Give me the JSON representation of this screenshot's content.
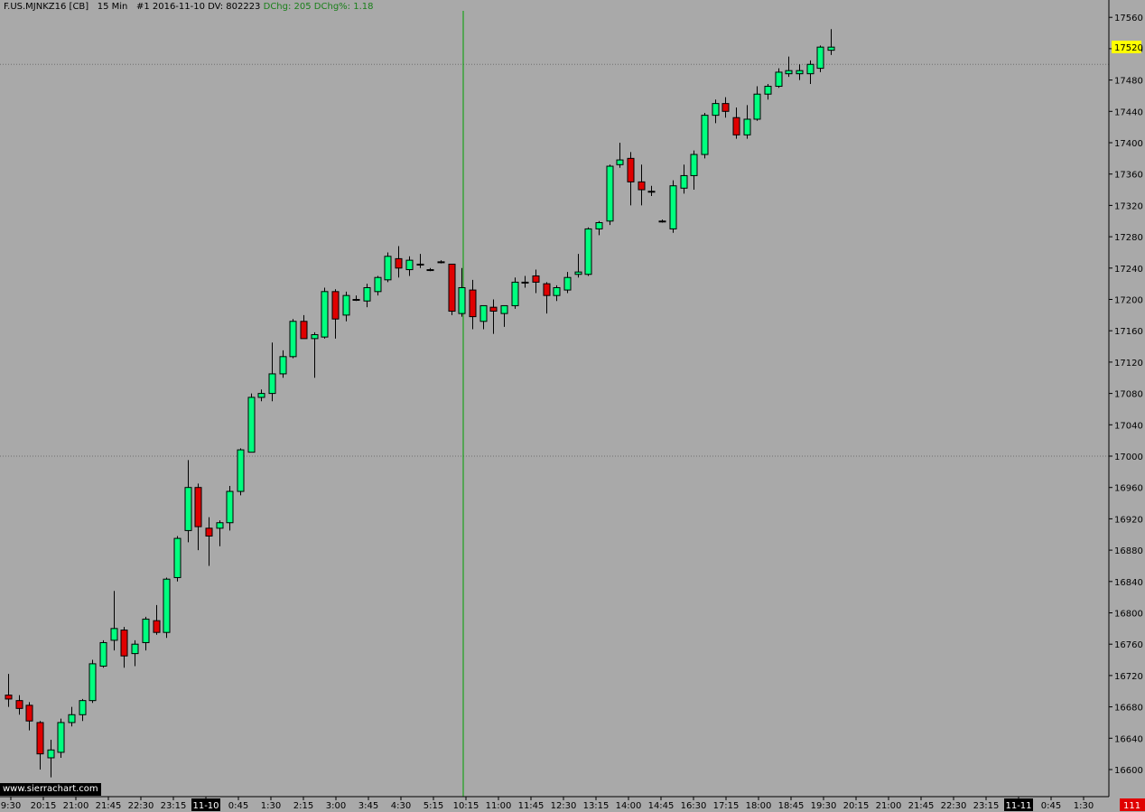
{
  "header": {
    "symbol": "F.US.MJNKZ16 [CB]",
    "timeframe": "15 Min",
    "info": "#1 2016-11-10 DV: 802223",
    "dchg": "DChg: 205 DChg%: 1.18"
  },
  "brand": "www.sierrachart.com",
  "price_marker": "17520",
  "corner_badge": "111",
  "colors": {
    "background": "#a9a9a9",
    "up": "#00ff7f",
    "down": "#e00000",
    "session_line": "#00a000",
    "marker_bg": "#ffff00"
  },
  "chart_data": {
    "type": "candlestick",
    "y_axis_ticks": [
      16600,
      16640,
      16680,
      16720,
      16760,
      16800,
      16840,
      16880,
      16920,
      16960,
      17000,
      17040,
      17080,
      17120,
      17160,
      17200,
      17240,
      17280,
      17320,
      17360,
      17400,
      17440,
      17480,
      17520,
      17560
    ],
    "x_axis_labels": [
      "9:30",
      "20:15",
      "21:00",
      "21:45",
      "22:30",
      "23:15",
      "11-10",
      "0:45",
      "1:30",
      "2:15",
      "3:00",
      "3:45",
      "4:30",
      "5:15",
      "10:15",
      "11:00",
      "11:45",
      "12:30",
      "13:15",
      "14:00",
      "14:45",
      "16:30",
      "17:15",
      "18:00",
      "18:45",
      "19:30",
      "20:15",
      "21:00",
      "21:45",
      "22:30",
      "23:15",
      "11-11",
      "0:45",
      "1:30"
    ],
    "date_labels": [
      "11-10",
      "11-11"
    ],
    "reference_levels": [
      17500,
      17000
    ],
    "candles": [
      [
        16695,
        16722,
        16680,
        16690
      ],
      [
        16688,
        16695,
        16670,
        16678
      ],
      [
        16682,
        16686,
        16650,
        16662
      ],
      [
        16660,
        16662,
        16600,
        16620
      ],
      [
        16615,
        16638,
        16590,
        16625
      ],
      [
        16622,
        16665,
        16615,
        16660
      ],
      [
        16660,
        16680,
        16655,
        16670
      ],
      [
        16670,
        16690,
        16662,
        16688
      ],
      [
        16688,
        16740,
        16685,
        16735
      ],
      [
        16732,
        16765,
        16730,
        16762
      ],
      [
        16765,
        16828,
        16752,
        16780
      ],
      [
        16778,
        16782,
        16730,
        16745
      ],
      [
        16748,
        16765,
        16732,
        16760
      ],
      [
        16762,
        16795,
        16752,
        16792
      ],
      [
        16790,
        16810,
        16772,
        16775
      ],
      [
        16775,
        16845,
        16768,
        16843
      ],
      [
        16845,
        16898,
        16840,
        16895
      ],
      [
        16905,
        16995,
        16890,
        16960
      ],
      [
        16960,
        16965,
        16880,
        16910
      ],
      [
        16908,
        16922,
        16860,
        16898
      ],
      [
        16908,
        16918,
        16885,
        16915
      ],
      [
        16915,
        16962,
        16905,
        16955
      ],
      [
        16955,
        17010,
        16950,
        17008
      ],
      [
        17005,
        17080,
        17005,
        17075
      ],
      [
        17075,
        17085,
        17070,
        17080
      ],
      [
        17080,
        17145,
        17070,
        17105
      ],
      [
        17105,
        17135,
        17100,
        17127
      ],
      [
        17127,
        17175,
        17125,
        17172
      ],
      [
        17172,
        17180,
        17150,
        17150
      ],
      [
        17150,
        17158,
        17100,
        17155
      ],
      [
        17152,
        17215,
        17150,
        17210
      ],
      [
        17210,
        17213,
        17150,
        17175
      ],
      [
        17180,
        17210,
        17172,
        17205
      ],
      [
        17200,
        17205,
        17198,
        17200
      ],
      [
        17198,
        17220,
        17190,
        17215
      ],
      [
        17210,
        17230,
        17205,
        17228
      ],
      [
        17225,
        17260,
        17222,
        17255
      ],
      [
        17252,
        17268,
        17228,
        17240
      ],
      [
        17238,
        17255,
        17230,
        17250
      ],
      [
        17245,
        17258,
        17240,
        17245
      ],
      [
        17238,
        17240,
        17236,
        17238
      ],
      [
        17248,
        17250,
        17246,
        17248
      ],
      [
        17245,
        17245,
        17180,
        17185
      ],
      [
        17182,
        17240,
        17178,
        17215
      ],
      [
        17212,
        17225,
        17162,
        17178
      ],
      [
        17172,
        17192,
        17162,
        17192
      ],
      [
        17190,
        17200,
        17156,
        17185
      ],
      [
        17182,
        17192,
        17165,
        17192
      ],
      [
        17192,
        17228,
        17188,
        17222
      ],
      [
        17222,
        17230,
        17215,
        17222
      ],
      [
        17230,
        17238,
        17208,
        17222
      ],
      [
        17220,
        17222,
        17182,
        17205
      ],
      [
        17205,
        17218,
        17198,
        17215
      ],
      [
        17212,
        17235,
        17208,
        17228
      ],
      [
        17232,
        17258,
        17228,
        17235
      ],
      [
        17232,
        17292,
        17230,
        17290
      ],
      [
        17290,
        17300,
        17282,
        17298
      ],
      [
        17300,
        17372,
        17295,
        17370
      ],
      [
        17372,
        17400,
        17368,
        17378
      ],
      [
        17380,
        17388,
        17320,
        17350
      ],
      [
        17350,
        17372,
        17320,
        17340
      ],
      [
        17338,
        17345,
        17332,
        17338
      ],
      [
        17300,
        17302,
        17298,
        17300
      ],
      [
        17290,
        17352,
        17285,
        17345
      ],
      [
        17342,
        17372,
        17335,
        17358
      ],
      [
        17358,
        17390,
        17340,
        17385
      ],
      [
        17385,
        17438,
        17380,
        17435
      ],
      [
        17435,
        17455,
        17425,
        17450
      ],
      [
        17450,
        17458,
        17432,
        17440
      ],
      [
        17432,
        17445,
        17405,
        17410
      ],
      [
        17410,
        17448,
        17405,
        17430
      ],
      [
        17430,
        17472,
        17428,
        17462
      ],
      [
        17462,
        17475,
        17455,
        17472
      ],
      [
        17472,
        17495,
        17470,
        17490
      ],
      [
        17488,
        17510,
        17484,
        17492
      ],
      [
        17488,
        17500,
        17480,
        17492
      ],
      [
        17488,
        17505,
        17475,
        17500
      ],
      [
        17495,
        17524,
        17490,
        17522
      ],
      [
        17518,
        17545,
        17512,
        17522
      ]
    ]
  }
}
